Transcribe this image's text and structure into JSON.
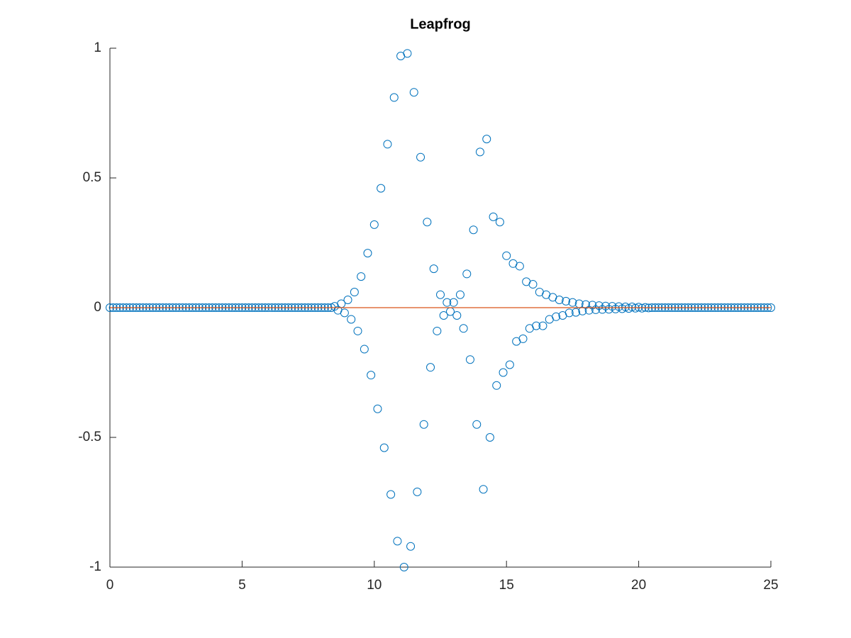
{
  "chart_data": {
    "type": "scatter",
    "title": "Leapfrog",
    "xlim": [
      0,
      25
    ],
    "ylim": [
      -1,
      1
    ],
    "xticks": [
      0,
      5,
      10,
      15,
      20,
      25
    ],
    "yticks": [
      -1,
      -0.5,
      0,
      0.5,
      1
    ],
    "series": [
      {
        "kind": "markers",
        "color": "#0072bd",
        "x": [
          0,
          0.125,
          0.25,
          0.375,
          0.5,
          0.625,
          0.75,
          0.875,
          1,
          1.125,
          1.25,
          1.375,
          1.5,
          1.625,
          1.75,
          1.875,
          2,
          2.125,
          2.25,
          2.375,
          2.5,
          2.625,
          2.75,
          2.875,
          3,
          3.125,
          3.25,
          3.375,
          3.5,
          3.625,
          3.75,
          3.875,
          4,
          4.125,
          4.25,
          4.375,
          4.5,
          4.625,
          4.75,
          4.875,
          5,
          5.125,
          5.25,
          5.375,
          5.5,
          5.625,
          5.75,
          5.875,
          6,
          6.125,
          6.25,
          6.375,
          6.5,
          6.625,
          6.75,
          6.875,
          7,
          7.125,
          7.25,
          7.375,
          7.5,
          7.625,
          7.75,
          7.875,
          8,
          8.125,
          8.25,
          8.375,
          8.5,
          8.625,
          8.75,
          8.875,
          9,
          9.125,
          9.25,
          9.375,
          9.5,
          9.625,
          9.75,
          9.875,
          10,
          10.125,
          10.25,
          10.375,
          10.5,
          10.625,
          10.75,
          10.875,
          11,
          11.125,
          11.25,
          11.375,
          11.5,
          11.625,
          11.75,
          11.875,
          12,
          12.125,
          12.25,
          12.375,
          12.5,
          12.625,
          12.75,
          12.875,
          13,
          13.125,
          13.25,
          13.375,
          13.5,
          13.625,
          13.75,
          13.875,
          14,
          14.125,
          14.25,
          14.375,
          14.5,
          14.625,
          14.75,
          14.875,
          15,
          15.125,
          15.25,
          15.375,
          15.5,
          15.625,
          15.75,
          15.875,
          16,
          16.125,
          16.25,
          16.375,
          16.5,
          16.625,
          16.75,
          16.875,
          17,
          17.125,
          17.25,
          17.375,
          17.5,
          17.625,
          17.75,
          17.875,
          18,
          18.125,
          18.25,
          18.375,
          18.5,
          18.625,
          18.75,
          18.875,
          19,
          19.125,
          19.25,
          19.375,
          19.5,
          19.625,
          19.75,
          19.875,
          20,
          20.125,
          20.25,
          20.375,
          20.5,
          20.625,
          20.75,
          20.875,
          21,
          21.125,
          21.25,
          21.375,
          21.5,
          21.625,
          21.75,
          21.875,
          22,
          22.125,
          22.25,
          22.375,
          22.5,
          22.625,
          22.75,
          22.875,
          23,
          23.125,
          23.25,
          23.375,
          23.5,
          23.625,
          23.75,
          23.875,
          24,
          24.125,
          24.25,
          24.375,
          24.5,
          24.625,
          24.75,
          24.875,
          25
        ],
        "values": [
          0,
          0,
          0,
          0,
          0,
          0,
          0,
          0,
          0,
          0,
          0,
          0,
          0,
          0,
          0,
          0,
          0,
          0,
          0,
          0,
          0,
          0,
          0,
          0,
          0,
          0,
          0,
          0,
          0,
          0,
          0,
          0,
          0,
          0,
          0,
          0,
          0,
          0,
          0,
          0,
          0,
          0,
          0,
          0,
          0,
          0,
          0,
          0,
          0,
          0,
          0,
          0,
          0,
          0,
          0,
          0,
          0,
          0,
          0,
          0,
          0,
          0,
          0,
          0,
          0,
          0,
          0,
          0,
          0.005,
          -0.01,
          0.015,
          -0.02,
          0.03,
          -0.045,
          0.06,
          -0.09,
          0.12,
          -0.16,
          0.21,
          -0.26,
          0.32,
          -0.39,
          0.46,
          -0.54,
          0.63,
          -0.72,
          0.81,
          -0.9,
          0.97,
          -1.0,
          0.98,
          -0.92,
          0.83,
          -0.71,
          0.58,
          -0.45,
          0.33,
          -0.23,
          0.15,
          -0.09,
          0.05,
          -0.03,
          0.02,
          -0.015,
          0.02,
          -0.03,
          0.05,
          -0.08,
          0.13,
          -0.2,
          0.3,
          -0.45,
          0.6,
          -0.7,
          0.65,
          -0.5,
          0.35,
          -0.3,
          0.33,
          -0.25,
          0.2,
          -0.22,
          0.17,
          -0.13,
          0.16,
          -0.12,
          0.1,
          -0.08,
          0.09,
          -0.07,
          0.06,
          -0.07,
          0.05,
          -0.045,
          0.04,
          -0.035,
          0.03,
          -0.03,
          0.025,
          -0.02,
          0.02,
          -0.018,
          0.015,
          -0.013,
          0.012,
          -0.01,
          0.01,
          -0.008,
          0.008,
          -0.007,
          0.006,
          -0.006,
          0.005,
          -0.005,
          0.004,
          -0.004,
          0.003,
          -0.003,
          0.003,
          -0.002,
          0.002,
          -0.002,
          0.001,
          -0.001,
          0,
          0,
          0,
          0,
          0,
          0,
          0,
          0,
          0,
          0,
          0,
          0,
          0,
          0,
          0,
          0,
          0,
          0,
          0,
          0,
          0,
          0,
          0,
          0,
          0,
          0,
          0,
          0,
          0,
          0,
          0,
          0,
          0,
          0,
          0,
          0,
          0
        ]
      },
      {
        "kind": "line",
        "color": "#d95319",
        "x": [
          0,
          25
        ],
        "values": [
          0,
          0
        ]
      }
    ]
  }
}
